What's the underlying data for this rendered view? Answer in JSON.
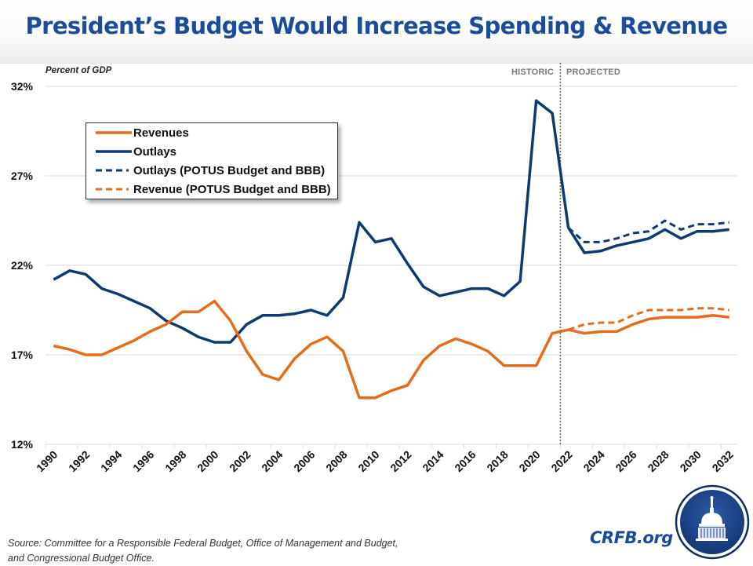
{
  "header": {
    "title": "President’s Budget Would Increase Spending & Revenue"
  },
  "chart_data": {
    "type": "line",
    "title": "President’s Budget Would Increase Spending & Revenue",
    "xlabel": "",
    "ylabel": "Percent of GDP",
    "ylim": [
      12,
      32
    ],
    "y_ticks": [
      12,
      17,
      22,
      27,
      32
    ],
    "y_tick_labels": [
      "12%",
      "17%",
      "22%",
      "27%",
      "32%"
    ],
    "x": [
      1990,
      1991,
      1992,
      1993,
      1994,
      1995,
      1996,
      1997,
      1998,
      1999,
      2000,
      2001,
      2002,
      2003,
      2004,
      2005,
      2006,
      2007,
      2008,
      2009,
      2010,
      2011,
      2012,
      2013,
      2014,
      2015,
      2016,
      2017,
      2018,
      2019,
      2020,
      2021,
      2022,
      2023,
      2024,
      2025,
      2026,
      2027,
      2028,
      2029,
      2030,
      2031,
      2032
    ],
    "x_tick_labels": [
      "1990",
      "1992",
      "1994",
      "1996",
      "1998",
      "2000",
      "2002",
      "2004",
      "2006",
      "2008",
      "2010",
      "2012",
      "2014",
      "2016",
      "2018",
      "2020",
      "2022",
      "2024",
      "2026",
      "2028",
      "2030",
      "2032"
    ],
    "grid": "horizontal",
    "legend_position": "top-left",
    "divider": {
      "between_years": [
        2021,
        2022
      ],
      "left_label": "HISTORIC",
      "right_label": "PROJECTED"
    },
    "series": [
      {
        "name": "Revenues",
        "color": "#e46c1a",
        "style": "solid",
        "x_start": 1990,
        "values": [
          17.5,
          17.3,
          17.0,
          17.0,
          17.4,
          17.8,
          18.3,
          18.7,
          19.4,
          19.4,
          20.0,
          18.9,
          17.2,
          15.9,
          15.6,
          16.8,
          17.6,
          18.0,
          17.2,
          14.6,
          14.6,
          15.0,
          15.3,
          16.7,
          17.5,
          17.9,
          17.6,
          17.2,
          16.4,
          16.4,
          16.4,
          18.2,
          18.4,
          18.2,
          18.3,
          18.3,
          18.7,
          19.0,
          19.1,
          19.1,
          19.1,
          19.2,
          19.1
        ]
      },
      {
        "name": "Outlays",
        "color": "#0d3b6e",
        "style": "solid",
        "x_start": 1990,
        "values": [
          21.2,
          21.7,
          21.5,
          20.7,
          20.4,
          20.0,
          19.6,
          18.9,
          18.5,
          18.0,
          17.7,
          17.7,
          18.7,
          19.2,
          19.2,
          19.3,
          19.5,
          19.2,
          20.2,
          24.4,
          23.3,
          23.5,
          22.1,
          20.8,
          20.3,
          20.5,
          20.7,
          20.7,
          20.3,
          21.1,
          31.2,
          30.5,
          24.1,
          22.7,
          22.8,
          23.1,
          23.3,
          23.5,
          24.0,
          23.5,
          23.9,
          23.9,
          24.0
        ]
      },
      {
        "name": "Outlays (POTUS Budget and BBB)",
        "color": "#0d3b6e",
        "style": "dashed",
        "x_start": 2022,
        "values": [
          24.1,
          23.3,
          23.3,
          23.5,
          23.8,
          23.9,
          24.5,
          24.0,
          24.3,
          24.3,
          24.4
        ]
      },
      {
        "name": "Revenue (POTUS Budget and BBB)",
        "color": "#e46c1a",
        "style": "dashed",
        "x_start": 2022,
        "values": [
          18.4,
          18.7,
          18.8,
          18.8,
          19.2,
          19.5,
          19.5,
          19.5,
          19.6,
          19.6,
          19.5
        ]
      }
    ]
  },
  "legend": {
    "items": [
      {
        "label": "Revenues",
        "color": "#e46c1a",
        "style": "solid"
      },
      {
        "label": "Outlays",
        "color": "#0d3b6e",
        "style": "solid"
      },
      {
        "label": "Outlays (POTUS Budget and BBB)",
        "color": "#0d3b6e",
        "style": "dashed"
      },
      {
        "label": "Revenue (POTUS Budget and BBB)",
        "color": "#e46c1a",
        "style": "dashed"
      }
    ]
  },
  "footer": {
    "source_line1": "Source: Committee for a Responsible Federal Budget, Office of Management and Budget,",
    "source_line2": "and Congressional Budget Office.",
    "brand": "CRFB.org",
    "logo_icon": "capitol-dome-icon"
  },
  "colors": {
    "title": "#1b4b9a",
    "brand": "#1b4b9a",
    "logo_bg": "#1a3f86",
    "gridline": "#d9d9d9",
    "divider": "#666666"
  }
}
